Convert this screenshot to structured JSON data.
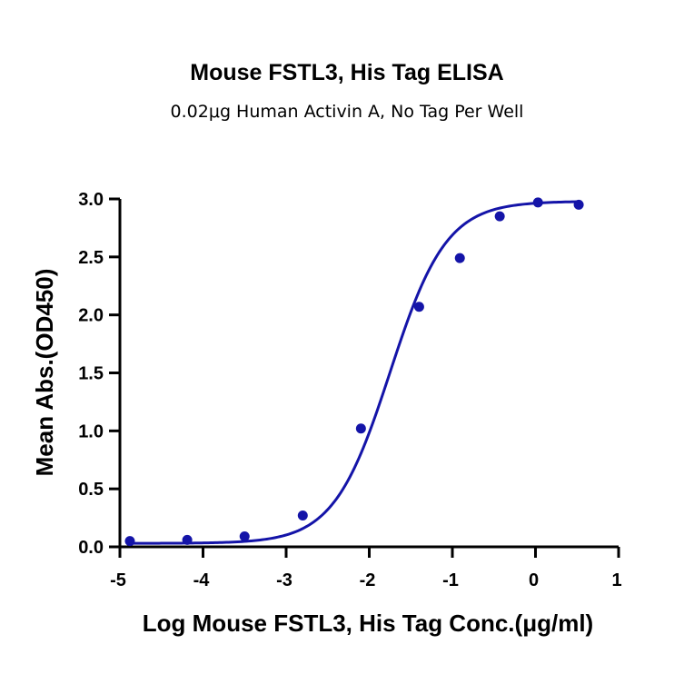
{
  "chart_data": {
    "type": "scatter",
    "title": "Mouse FSTL3, His Tag ELISA",
    "subtitle": "0.02μg Human Activin A, No Tag Per Well",
    "xlabel": "Log Mouse FSTL3, His Tag Conc.(μg/ml)",
    "ylabel": "Mean Abs.(OD450)",
    "xlim": [
      -5,
      1
    ],
    "ylim": [
      0,
      3
    ],
    "x_ticks": [
      "-5",
      "-4",
      "-3",
      "-2",
      "-1",
      "0",
      "1"
    ],
    "y_ticks": [
      "0.0",
      "0.5",
      "1.0",
      "1.5",
      "2.0",
      "2.5",
      "3.0"
    ],
    "grid": false,
    "series": [
      {
        "points": [
          {
            "x": -4.88,
            "y": 0.05
          },
          {
            "x": -4.19,
            "y": 0.06
          },
          {
            "x": -3.5,
            "y": 0.09
          },
          {
            "x": -2.8,
            "y": 0.27
          },
          {
            "x": -2.1,
            "y": 1.02
          },
          {
            "x": -1.4,
            "y": 2.07
          },
          {
            "x": -0.91,
            "y": 2.49
          },
          {
            "x": -0.43,
            "y": 2.85
          },
          {
            "x": 0.03,
            "y": 2.97
          },
          {
            "x": 0.52,
            "y": 2.95
          }
        ],
        "fit": {
          "type": "four-parameter logistic",
          "bottom": 0.03,
          "top": 2.98,
          "logEC50": -1.75,
          "hillslope": 1.28
        }
      }
    ],
    "colors": {
      "series": "#1414a8",
      "axis": "#000000"
    }
  }
}
